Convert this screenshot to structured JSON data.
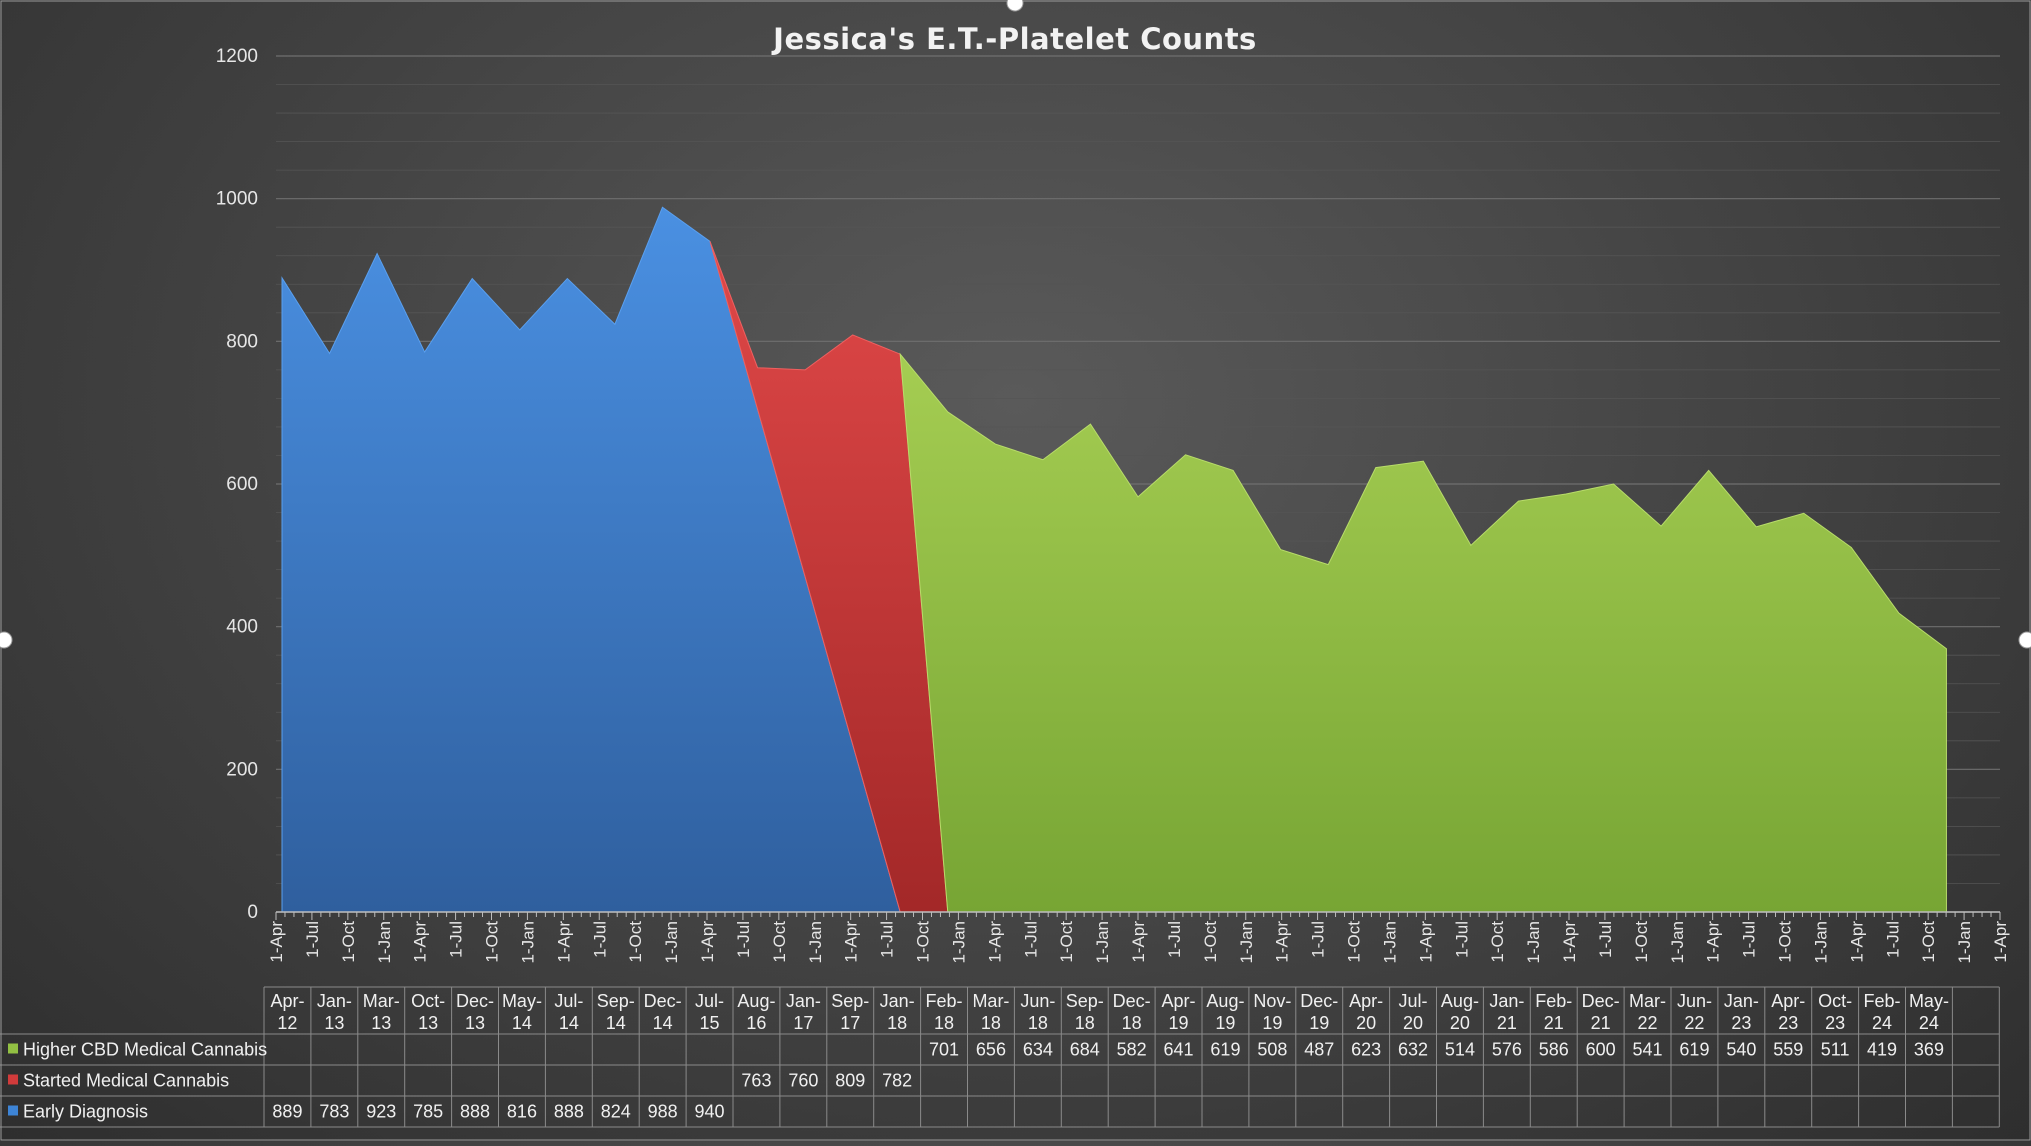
{
  "chart_data": {
    "type": "area",
    "title": "Jessica's E.T.-Platelet Counts",
    "ylim": [
      0,
      1200
    ],
    "y_ticks": [
      "0",
      "200",
      "400",
      "600",
      "800",
      "1000",
      "1200"
    ],
    "grid": true,
    "x_axis_tick_labels": [
      "1-Apr",
      "1-Jul",
      "1-Oct",
      "1-Jan",
      "1-Apr",
      "1-Jul",
      "1-Oct",
      "1-Jan",
      "1-Apr",
      "1-Jul",
      "1-Oct",
      "1-Jan",
      "1-Apr",
      "1-Jul",
      "1-Oct",
      "1-Jan",
      "1-Apr",
      "1-Jul",
      "1-Oct",
      "1-Jan",
      "1-Apr",
      "1-Jul",
      "1-Oct",
      "1-Jan",
      "1-Apr",
      "1-Jul",
      "1-Oct",
      "1-Jan",
      "1-Apr",
      "1-Jul",
      "1-Oct",
      "1-Jan",
      "1-Apr",
      "1-Jul",
      "1-Oct",
      "1-Jan",
      "1-Apr",
      "1-Jul",
      "1-Oct",
      "1-Jan",
      "1-Apr",
      "1-Jul",
      "1-Oct",
      "1-Jan",
      "1-Apr",
      "1-Jul",
      "1-Oct",
      "1-Jan",
      "1-Apr"
    ],
    "categories": [
      [
        "Apr-",
        "12"
      ],
      [
        "Jan-",
        "13"
      ],
      [
        "Mar-",
        "13"
      ],
      [
        "Oct-",
        "13"
      ],
      [
        "Dec-",
        "13"
      ],
      [
        "May-",
        "14"
      ],
      [
        "Jul-",
        "14"
      ],
      [
        "Sep-",
        "14"
      ],
      [
        "Dec-",
        "14"
      ],
      [
        "Jul-",
        "15"
      ],
      [
        "Aug-",
        "16"
      ],
      [
        "Jan-",
        "17"
      ],
      [
        "Sep-",
        "17"
      ],
      [
        "Jan-",
        "18"
      ],
      [
        "Feb-",
        "18"
      ],
      [
        "Mar-",
        "18"
      ],
      [
        "Jun-",
        "18"
      ],
      [
        "Sep-",
        "18"
      ],
      [
        "Dec-",
        "18"
      ],
      [
        "Apr-",
        "19"
      ],
      [
        "Aug-",
        "19"
      ],
      [
        "Nov-",
        "19"
      ],
      [
        "Dec-",
        "19"
      ],
      [
        "Apr-",
        "20"
      ],
      [
        "Jul-",
        "20"
      ],
      [
        "Aug-",
        "20"
      ],
      [
        "Jan-",
        "21"
      ],
      [
        "Feb-",
        "21"
      ],
      [
        "Dec-",
        "21"
      ],
      [
        "Mar-",
        "22"
      ],
      [
        "Jun-",
        "22"
      ],
      [
        "Jan-",
        "23"
      ],
      [
        "Apr-",
        "23"
      ],
      [
        "Oct-",
        "23"
      ],
      [
        "Feb-",
        "24"
      ],
      [
        "May-",
        "24"
      ]
    ],
    "series": [
      {
        "name": "Higher CBD Medical Cannabis",
        "color": "#92c043",
        "values": [
          null,
          null,
          null,
          null,
          null,
          null,
          null,
          null,
          null,
          null,
          null,
          null,
          null,
          null,
          701,
          656,
          634,
          684,
          582,
          641,
          619,
          508,
          487,
          623,
          632,
          514,
          576,
          586,
          600,
          541,
          619,
          540,
          559,
          511,
          419,
          369
        ]
      },
      {
        "name": "Started Medical Cannabis",
        "color": "#d13b3b",
        "values": [
          null,
          null,
          null,
          null,
          null,
          null,
          null,
          null,
          null,
          null,
          763,
          760,
          809,
          782,
          null,
          null,
          null,
          null,
          null,
          null,
          null,
          null,
          null,
          null,
          null,
          null,
          null,
          null,
          null,
          null,
          null,
          null,
          null,
          null,
          null,
          null
        ]
      },
      {
        "name": "Early Diagnosis",
        "color": "#3d84d6",
        "values": [
          889,
          783,
          923,
          785,
          888,
          816,
          888,
          824,
          988,
          940,
          null,
          null,
          null,
          null,
          null,
          null,
          null,
          null,
          null,
          null,
          null,
          null,
          null,
          null,
          null,
          null,
          null,
          null,
          null,
          null,
          null,
          null,
          null,
          null,
          null,
          null
        ]
      }
    ]
  }
}
